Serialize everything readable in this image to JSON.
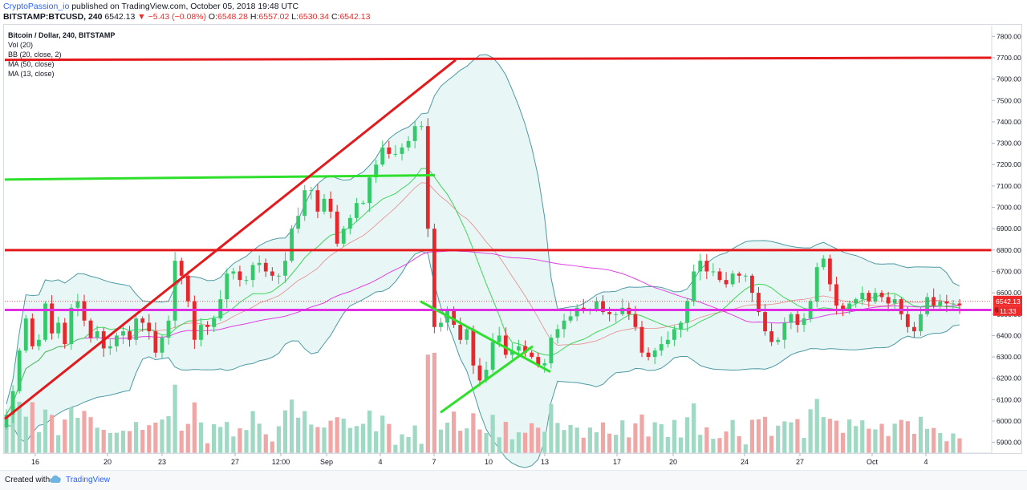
{
  "header": {
    "author": "CryptoPassion_io",
    "published": " published on TradingView.com, October 05, 2018 19:48 UTC",
    "symbol": "BITSTAMP:BTCUSD, 240",
    "last": "6542.13",
    "change": "▼ −5.43 (−0.08%)",
    "o_label": "O:",
    "o": "6548.28",
    "h_label": "H:",
    "h": "6557.02",
    "l_label": "L:",
    "l": "6530.34",
    "c_label": "C:",
    "c": "6542.13"
  },
  "legend": {
    "title": "Bitcoin / Dollar, 240, BITSTAMP",
    "items": [
      "Vol (20)",
      "BB (20, close, 2)",
      "MA (50, close)",
      "MA (13, close)"
    ]
  },
  "footer": {
    "created": "Created with",
    "brand": "TradingView"
  },
  "colors": {
    "up": "#35c96b",
    "down": "#e8272c",
    "vol_up": "#9fd8c3",
    "vol_down": "#f1a6a6",
    "bb": "#4d9aa3",
    "bb_fill": "#e4f4f4",
    "ma50": "#e040e6",
    "ma13": "#e86f6f",
    "red_line": "#e5191c",
    "green_line": "#2ee02b",
    "magenta_line": "#e02ee2",
    "price_tag": "#ef2a2a"
  },
  "chart_data": {
    "type": "candlestick",
    "price_axis": {
      "min": 5850,
      "max": 7850,
      "ticks": [
        "5900.00",
        "6000.00",
        "6100.00",
        "6200.00",
        "6300.00",
        "6400.00",
        "6500.00",
        "6600.00",
        "6700.00",
        "6800.00",
        "6900.00",
        "7000.00",
        "7100.00",
        "7200.00",
        "7300.00",
        "7400.00",
        "7500.00",
        "7600.00",
        "7700.00",
        "7800.00"
      ],
      "last_price_label": "6542.13",
      "countdown_label": "11:33",
      "side_label": "6"
    },
    "time_axis": {
      "ticks": [
        "16",
        "20",
        "23",
        "27",
        "12:00",
        "Sep",
        "4",
        "7",
        "10",
        "13",
        "17",
        "20",
        "24",
        "27",
        "Oct",
        "4"
      ]
    },
    "closes": [
      6030,
      6140,
      6330,
      6480,
      6350,
      6380,
      6550,
      6410,
      6460,
      6360,
      6530,
      6560,
      6470,
      6390,
      6420,
      6340,
      6350,
      6400,
      6420,
      6380,
      6480,
      6460,
      6420,
      6320,
      6390,
      6470,
      6750,
      6680,
      6560,
      6380,
      6450,
      6440,
      6480,
      6570,
      6690,
      6700,
      6660,
      6660,
      6730,
      6740,
      6700,
      6680,
      6680,
      6750,
      6900,
      6960,
      7080,
      7080,
      6980,
      7040,
      6980,
      6830,
      6900,
      6950,
      7020,
      7020,
      7140,
      7200,
      7280,
      7250,
      7250,
      7280,
      7310,
      7380,
      7380,
      6900,
      6440,
      6460,
      6520,
      6450,
      6380,
      6430,
      6260,
      6190,
      6240,
      6370,
      6400,
      6310,
      6330,
      6350,
      6320,
      6300,
      6260,
      6270,
      6390,
      6430,
      6470,
      6490,
      6530,
      6520,
      6520,
      6560,
      6510,
      6500,
      6500,
      6530,
      6500,
      6440,
      6320,
      6300,
      6330,
      6360,
      6380,
      6430,
      6460,
      6560,
      6700,
      6750,
      6700,
      6700,
      6660,
      6640,
      6690,
      6680,
      6680,
      6600,
      6510,
      6420,
      6370,
      6380,
      6460,
      6500,
      6450,
      6480,
      6560,
      6720,
      6760,
      6640,
      6540,
      6520,
      6550,
      6570,
      6600,
      6560,
      6600,
      6580,
      6550,
      6570,
      6500,
      6440,
      6420,
      6500,
      6580,
      6540,
      6560,
      6550,
      6550,
      6542
    ],
    "annotations": [
      {
        "type": "trendline",
        "color": "red",
        "from": [
          "Aug 14",
          "6000"
        ],
        "to": [
          "Sep 6",
          "7680"
        ]
      },
      {
        "type": "horizontal",
        "color": "red",
        "price": 7690
      },
      {
        "type": "horizontal",
        "color": "red",
        "price": 6800
      },
      {
        "type": "horizontal",
        "color": "green",
        "price": 7130
      },
      {
        "type": "horizontal",
        "color": "magenta",
        "price": 6520
      },
      {
        "type": "trendline",
        "color": "green",
        "from": [
          "Sep 6",
          "6560"
        ],
        "to": [
          "Sep 12",
          "6230"
        ]
      },
      {
        "type": "trendline",
        "color": "green",
        "from": [
          "Sep 7",
          "6040"
        ],
        "to": [
          "Sep 12",
          "6350"
        ]
      }
    ]
  }
}
